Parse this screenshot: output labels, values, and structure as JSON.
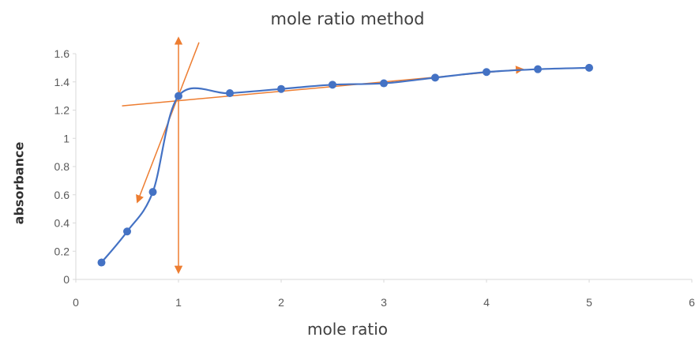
{
  "chart_data": {
    "type": "scatter",
    "title": "mole ratio method",
    "xlabel": "mole ratio",
    "ylabel": "absorbance",
    "xlim": [
      0,
      6
    ],
    "ylim": [
      0,
      1.6
    ],
    "xticks": [
      "0",
      "1",
      "2",
      "3",
      "4",
      "5",
      "6"
    ],
    "yticks": [
      "0",
      "0.2",
      "0.4",
      "0.6",
      "0.8",
      "1",
      "1.2",
      "1.4",
      "1.6"
    ],
    "grid": false,
    "legend": "none",
    "series": [
      {
        "color": "#4472C4",
        "smooth": true,
        "x": [
          0.25,
          0.5,
          0.75,
          1.0,
          1.5,
          2.0,
          2.5,
          3.0,
          3.5,
          4.0,
          4.5,
          5.0
        ],
        "y": [
          0.12,
          0.34,
          0.62,
          1.3,
          1.32,
          1.35,
          1.38,
          1.39,
          1.43,
          1.47,
          1.49,
          1.5
        ]
      }
    ],
    "annotations": [
      {
        "type": "arrow-line",
        "color": "#ED7D31",
        "from": [
          1.2,
          1.68
        ],
        "to": [
          0.6,
          0.55
        ]
      },
      {
        "type": "arrow-line",
        "color": "#ED7D31",
        "from": [
          0.45,
          1.23
        ],
        "to": [
          4.35,
          1.49
        ]
      },
      {
        "type": "vertical-arrows",
        "color": "#ED7D31",
        "x": 1.0,
        "from": 0.05,
        "to": 1.71
      }
    ]
  }
}
